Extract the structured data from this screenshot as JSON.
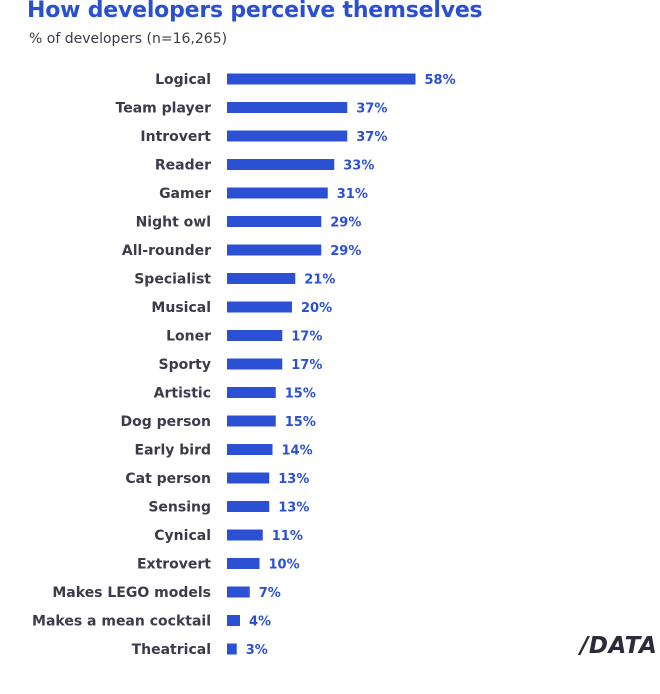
{
  "chart_data": {
    "type": "bar",
    "orientation": "horizontal",
    "title": "How developers perceive themselves",
    "subtitle": "% of developers (n=16,265)",
    "categories": [
      "Logical",
      "Team player",
      "Introvert",
      "Reader",
      "Gamer",
      "Night owl",
      "All-rounder",
      "Specialist",
      "Musical",
      "Loner",
      "Sporty",
      "Artistic",
      "Dog person",
      "Early bird",
      "Cat person",
      "Sensing",
      "Cynical",
      "Extrovert",
      "Makes LEGO models",
      "Makes a mean cocktail",
      "Theatrical"
    ],
    "values": [
      58,
      37,
      37,
      33,
      31,
      29,
      29,
      21,
      20,
      17,
      17,
      15,
      15,
      14,
      13,
      13,
      11,
      10,
      7,
      4,
      3
    ],
    "value_labels": [
      "58%",
      "37%",
      "37%",
      "33%",
      "31%",
      "29%",
      "29%",
      "21%",
      "20%",
      "17%",
      "17%",
      "15%",
      "15%",
      "14%",
      "13%",
      "13%",
      "11%",
      "10%",
      "7%",
      "4%",
      "3%"
    ],
    "unit": "%",
    "grid": false,
    "legend": "none",
    "colors": {
      "bar": "#2b50d4",
      "value_label": "#2b50d4",
      "title": "#2a4fd0",
      "label": "#3b3b4a"
    }
  },
  "brand": {
    "name": "/DATA",
    "color": "#2b2b39"
  }
}
